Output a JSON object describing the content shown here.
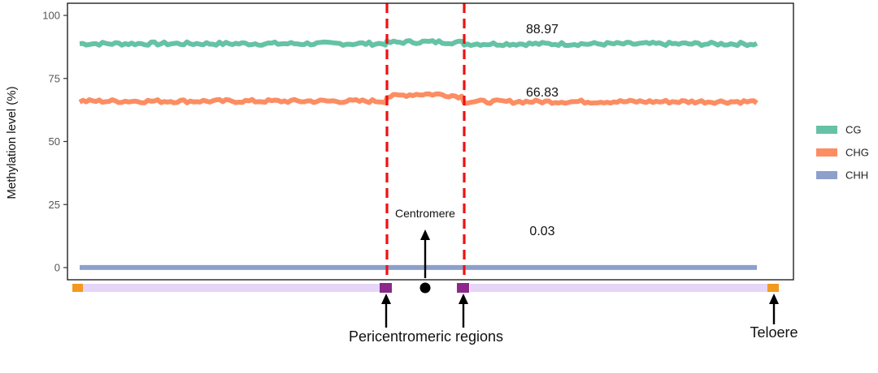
{
  "chart_data": {
    "type": "line",
    "title": "",
    "xlabel": "",
    "ylabel": "Methylation level (%)",
    "ylim": [
      0,
      100
    ],
    "yticks": [
      0,
      25,
      50,
      75,
      100
    ],
    "grid": false,
    "legend_position": "right",
    "series": [
      {
        "name": "CG",
        "color": "#66c2a5",
        "annotation": "88.97",
        "segments": [
          {
            "region": "chromosome-arm-left",
            "level": 88.8
          },
          {
            "region": "centromere",
            "level": 89.5
          },
          {
            "region": "chromosome-arm-right",
            "level": 88.7
          }
        ]
      },
      {
        "name": "CHG",
        "color": "#fc8d62",
        "annotation": "66.83",
        "segments": [
          {
            "region": "chromosome-arm-left",
            "level": 66.0
          },
          {
            "region": "centromere",
            "level": 68.8
          },
          {
            "region": "chromosome-arm-right",
            "level": 65.8
          }
        ]
      },
      {
        "name": "CHH",
        "color": "#8da0cb",
        "annotation": "0.03",
        "segments": [
          {
            "region": "chromosome-arm-left",
            "level": 0.03
          },
          {
            "region": "centromere",
            "level": 0.03
          },
          {
            "region": "chromosome-arm-right",
            "level": 0.03
          }
        ]
      }
    ],
    "boundary_line_color": "#ee1111",
    "ideogram": {
      "arm_color": "#e6d5f7",
      "pericentromere_color": "#8b2a8b",
      "telomere_color": "#f39a1e",
      "centromere_color": "#000000"
    },
    "annotations": {
      "centromere": "Centromere",
      "pericentromeric": "Pericentromeric regions",
      "telomere": "Teloere"
    }
  }
}
